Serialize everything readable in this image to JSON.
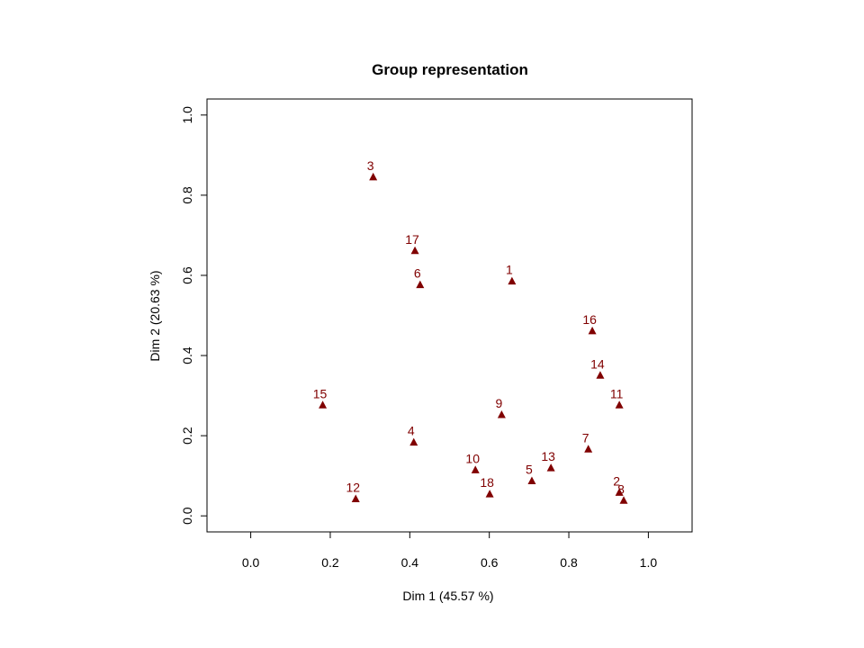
{
  "chart_data": {
    "type": "scatter",
    "title": "Group representation",
    "xlabel": "Dim 1 (45.57 %)",
    "ylabel": "Dim 2 (20.63 %)",
    "xlim": [
      -0.11,
      1.11
    ],
    "ylim": [
      -0.04,
      1.04
    ],
    "x_ticks": [
      "0.0",
      "0.2",
      "0.4",
      "0.6",
      "0.8",
      "1.0"
    ],
    "y_ticks": [
      "0.0",
      "0.2",
      "0.4",
      "0.6",
      "0.8",
      "1.0"
    ],
    "grid": false,
    "point_color": "#800000",
    "marker": "triangle",
    "points": [
      {
        "label": "1",
        "x": 0.657,
        "y": 0.585
      },
      {
        "label": "2",
        "x": 0.927,
        "y": 0.058
      },
      {
        "label": "3",
        "x": 0.308,
        "y": 0.845
      },
      {
        "label": "4",
        "x": 0.41,
        "y": 0.183
      },
      {
        "label": "5",
        "x": 0.707,
        "y": 0.087
      },
      {
        "label": "6",
        "x": 0.426,
        "y": 0.576
      },
      {
        "label": "7",
        "x": 0.849,
        "y": 0.166
      },
      {
        "label": "8",
        "x": 0.938,
        "y": 0.038
      },
      {
        "label": "9",
        "x": 0.631,
        "y": 0.252
      },
      {
        "label": "10",
        "x": 0.565,
        "y": 0.114
      },
      {
        "label": "11",
        "x": 0.927,
        "y": 0.276
      },
      {
        "label": "12",
        "x": 0.264,
        "y": 0.042
      },
      {
        "label": "13",
        "x": 0.755,
        "y": 0.119
      },
      {
        "label": "14",
        "x": 0.879,
        "y": 0.35
      },
      {
        "label": "15",
        "x": 0.181,
        "y": 0.276
      },
      {
        "label": "16",
        "x": 0.859,
        "y": 0.461
      },
      {
        "label": "17",
        "x": 0.413,
        "y": 0.661
      },
      {
        "label": "18",
        "x": 0.601,
        "y": 0.054
      }
    ]
  }
}
